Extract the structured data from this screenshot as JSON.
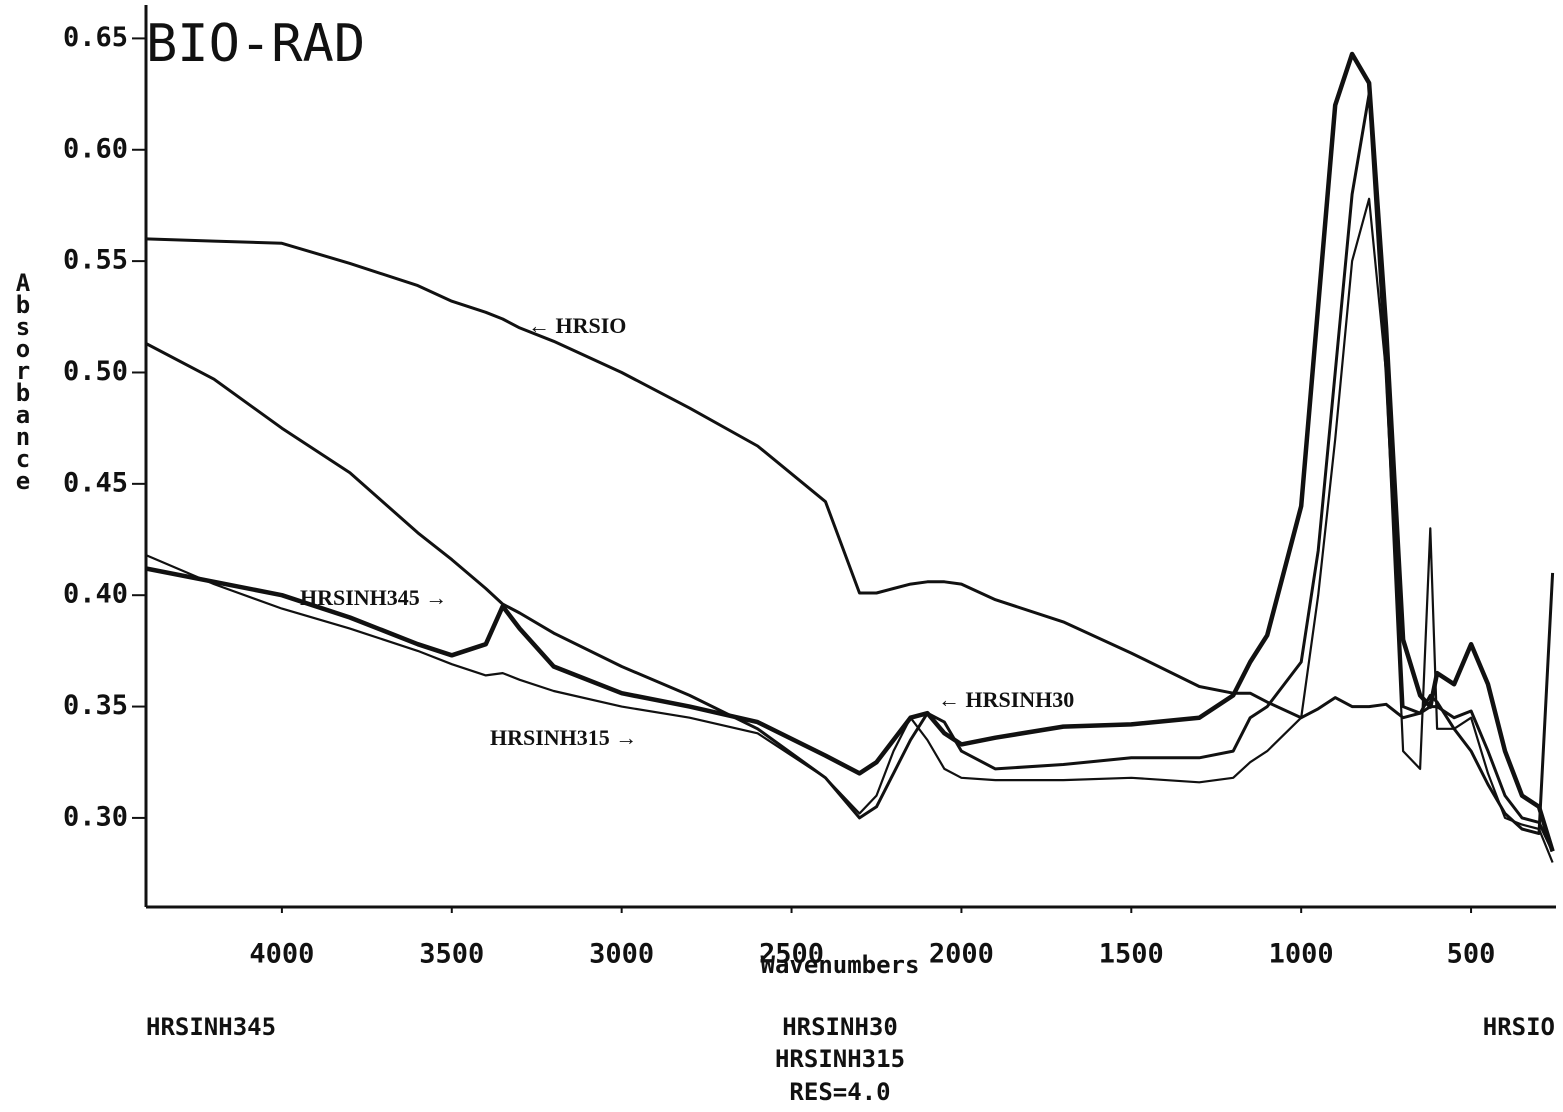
{
  "chart_data": {
    "type": "line",
    "title": "BIO-RAD",
    "x_label": "Wavenumbers",
    "y_label": "Absorbance",
    "x": [
      4400,
      4200,
      4000,
      3800,
      3600,
      3500,
      3400,
      3350,
      3300,
      3200,
      3000,
      2800,
      2600,
      2400,
      2300,
      2250,
      2200,
      2150,
      2100,
      2050,
      2000,
      1900,
      1700,
      1500,
      1300,
      1200,
      1150,
      1100,
      1000,
      950,
      900,
      850,
      800,
      750,
      700,
      650,
      620,
      600,
      550,
      500,
      450,
      400,
      350,
      300,
      260
    ],
    "series": [
      {
        "name": "HRSIO",
        "color": "#111111",
        "values": [
          0.56,
          0.559,
          0.558,
          0.549,
          0.539,
          0.532,
          0.527,
          0.524,
          0.52,
          0.514,
          0.5,
          0.484,
          0.467,
          0.442,
          0.401,
          0.401,
          0.403,
          0.405,
          0.406,
          0.406,
          0.405,
          0.398,
          0.388,
          0.374,
          0.359,
          0.356,
          0.356,
          0.352,
          0.345,
          0.349,
          0.354,
          0.35,
          0.35,
          0.351,
          0.345,
          0.347,
          0.355,
          0.352,
          0.34,
          0.33,
          0.315,
          0.302,
          0.295,
          0.293,
          0.41
        ]
      },
      {
        "name": "HRSINH345",
        "color": "#111111",
        "values": [
          0.412,
          0.406,
          0.4,
          0.39,
          0.378,
          0.373,
          0.378,
          0.395,
          0.385,
          0.368,
          0.356,
          0.35,
          0.343,
          0.328,
          0.32,
          0.325,
          0.335,
          0.345,
          0.347,
          0.338,
          0.333,
          0.336,
          0.341,
          0.342,
          0.345,
          0.355,
          0.37,
          0.382,
          0.44,
          0.53,
          0.62,
          0.643,
          0.63,
          0.52,
          0.38,
          0.355,
          0.35,
          0.365,
          0.36,
          0.378,
          0.36,
          0.33,
          0.31,
          0.305,
          0.285
        ]
      },
      {
        "name": "HRSINH30",
        "color": "#111111",
        "values": [
          0.513,
          0.497,
          0.475,
          0.455,
          0.428,
          0.416,
          0.403,
          0.396,
          0.392,
          0.383,
          0.368,
          0.355,
          0.34,
          0.318,
          0.3,
          0.305,
          0.32,
          0.335,
          0.347,
          0.343,
          0.33,
          0.322,
          0.324,
          0.327,
          0.327,
          0.33,
          0.345,
          0.35,
          0.37,
          0.42,
          0.5,
          0.58,
          0.625,
          0.5,
          0.35,
          0.347,
          0.35,
          0.35,
          0.345,
          0.348,
          0.33,
          0.31,
          0.3,
          0.298,
          0.285
        ]
      },
      {
        "name": "HRSINH315",
        "color": "#111111",
        "values": [
          0.418,
          0.405,
          0.394,
          0.385,
          0.375,
          0.369,
          0.364,
          0.365,
          0.362,
          0.357,
          0.35,
          0.345,
          0.338,
          0.318,
          0.302,
          0.31,
          0.33,
          0.345,
          0.335,
          0.322,
          0.318,
          0.317,
          0.317,
          0.318,
          0.316,
          0.318,
          0.325,
          0.33,
          0.345,
          0.4,
          0.47,
          0.55,
          0.578,
          0.5,
          0.33,
          0.322,
          0.43,
          0.34,
          0.34,
          0.345,
          0.32,
          0.3,
          0.297,
          0.295,
          0.28
        ]
      }
    ],
    "xlim": [
      4400,
      250
    ],
    "ylim": [
      0.26,
      0.665
    ],
    "xticks": [
      4000,
      3500,
      3000,
      2500,
      2000,
      1500,
      1000,
      500
    ],
    "yticks": [
      {
        "value": 0.3,
        "label": "0.30"
      },
      0.35,
      {
        "value": 0.4,
        "label": "0.40"
      },
      0.45,
      {
        "value": 0.5,
        "label": "0.50"
      },
      0.55,
      {
        "value": 0.6,
        "label": "0.60"
      },
      0.65
    ],
    "annotations": [
      "← HRSIO",
      "HRSINH345 →",
      "← HRSINH30",
      "HRSINH315 →"
    ],
    "footer": {
      "left": "HRSINH345",
      "center": [
        "HRSINH30",
        "HRSINH315",
        "RES=4.0"
      ],
      "right": "HRSIO"
    }
  }
}
